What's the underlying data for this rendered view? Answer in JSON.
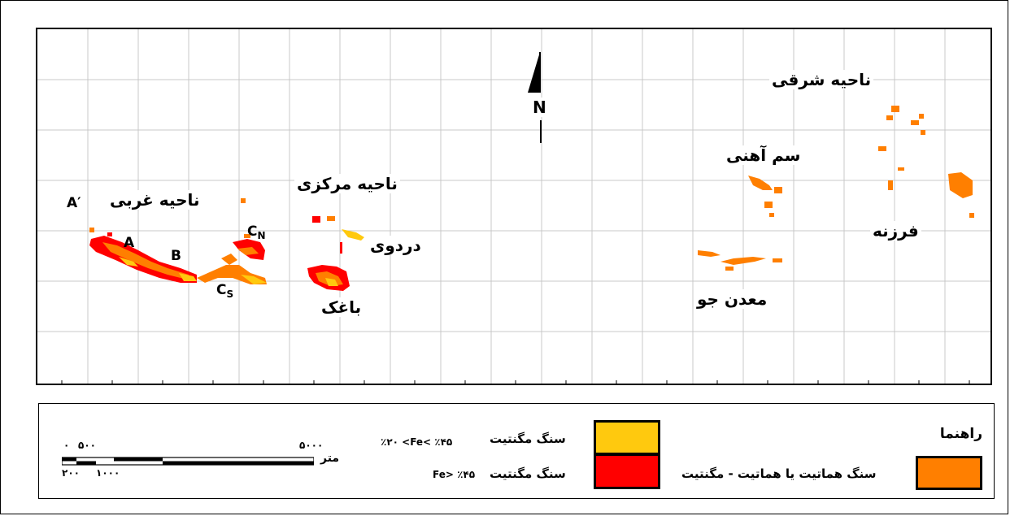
{
  "map": {
    "north": "N",
    "regions": {
      "west": "ناحیه غربی",
      "central": "ناحیه مرکزی",
      "east": "ناحیه شرقی"
    },
    "places": {
      "dardvi": "دردوی",
      "baghak": "باغک",
      "somahani": "سم آهنی",
      "madanjo": "معدن جو",
      "farzaneh": "فرزنه"
    },
    "points": {
      "a_prime": "A′",
      "a": "A",
      "b": "B",
      "c": "C",
      "cn_sub": "N",
      "cs_sub": "S"
    },
    "colors": {
      "yellow": "#ffc90e",
      "red": "#ff0000",
      "orange": "#ff7f00",
      "grid": "#c8c8c8"
    }
  },
  "legend": {
    "title": "راهنما",
    "items": [
      {
        "label": "سنگ مگنتیت",
        "range": "٪۲۰ <Fe< ٪۴۵",
        "color": "#ffc90e"
      },
      {
        "label": "سنگ مگنتیت",
        "range": "Fe> ٪۴۵",
        "color": "#ff0000"
      },
      {
        "label": "سنگ هماتیت یا هماتیت - مگنتیت",
        "color": "#ff7f00"
      }
    ],
    "scale": {
      "unit": "متر",
      "top_left": "۰",
      "top_mid": "۵۰۰",
      "top_right": "۵۰۰۰",
      "bottom_left": "۲۰۰",
      "bottom_mid": "۱۰۰۰"
    }
  }
}
